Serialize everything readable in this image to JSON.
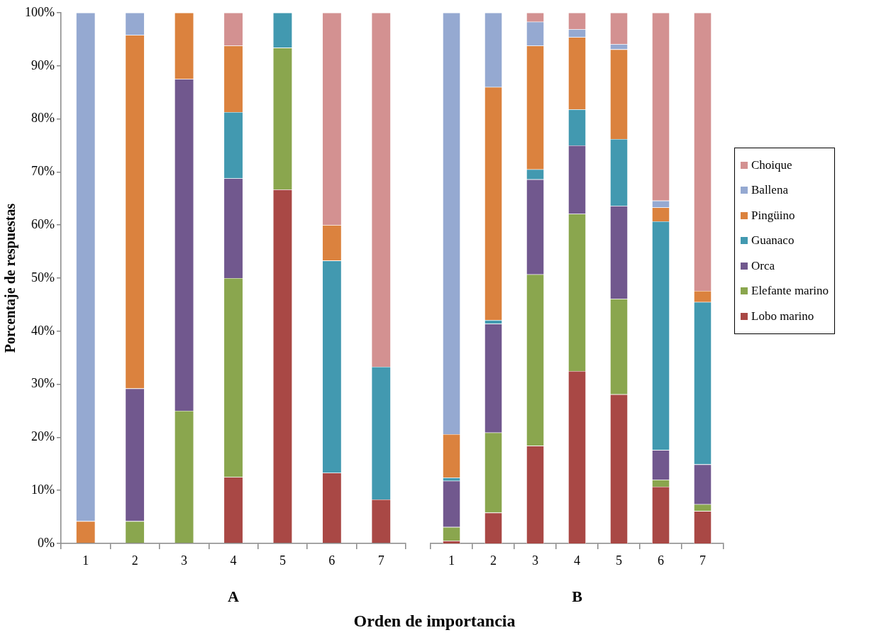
{
  "chart_data": [
    {
      "type": "bar",
      "stacked": true,
      "xlabel": "A",
      "ylabel": "Porcentaje de respuestas",
      "categories": [
        "1",
        "2",
        "3",
        "4",
        "5",
        "6",
        "7"
      ],
      "ylim": [
        0,
        100
      ],
      "yticks": [
        {
          "value": 0,
          "label": "0%"
        },
        {
          "value": 10,
          "label": "10%"
        },
        {
          "value": 20,
          "label": "20%"
        },
        {
          "value": 30,
          "label": "30%"
        },
        {
          "value": 40,
          "label": "40%"
        },
        {
          "value": 50,
          "label": "50%"
        },
        {
          "value": 60,
          "label": "60%"
        },
        {
          "value": 70,
          "label": "70%"
        },
        {
          "value": 80,
          "label": "80%"
        },
        {
          "value": 90,
          "label": "90%"
        },
        {
          "value": 100,
          "label": "100%"
        }
      ],
      "grid": false,
      "legend": "right",
      "series": [
        {
          "name": "Lobo marino",
          "color": "#a94845",
          "values": [
            0,
            0,
            0,
            12.5,
            66.7,
            13.3,
            8.3
          ]
        },
        {
          "name": "Elefante marino",
          "color": "#8aa64e",
          "values": [
            0,
            4.2,
            25,
            37.5,
            26.7,
            0,
            0
          ]
        },
        {
          "name": "Orca",
          "color": "#71588e",
          "values": [
            0,
            25,
            62.5,
            18.8,
            0,
            0,
            0
          ]
        },
        {
          "name": "Guanaco",
          "color": "#4299b0",
          "values": [
            0,
            0,
            0,
            12.5,
            6.6,
            40,
            25
          ]
        },
        {
          "name": "Pingüino",
          "color": "#db823e",
          "values": [
            4.2,
            66.6,
            12.5,
            12.5,
            0,
            6.7,
            0
          ]
        },
        {
          "name": "Ballena",
          "color": "#95a9d1",
          "values": [
            95.8,
            4.2,
            0,
            0,
            0,
            0,
            0
          ]
        },
        {
          "name": "Choique",
          "color": "#d39191",
          "values": [
            0,
            0,
            0,
            6.2,
            0,
            40,
            66.7
          ]
        }
      ]
    },
    {
      "type": "bar",
      "stacked": true,
      "xlabel": "B",
      "categories": [
        "1",
        "2",
        "3",
        "4",
        "5",
        "6",
        "7"
      ],
      "ylim": [
        0,
        100
      ],
      "tick_labels": "x",
      "grid": false,
      "legend": "right",
      "annotations": [
        "Orden de importancia"
      ],
      "series": [
        {
          "name": "Lobo marino",
          "color": "#a94845",
          "values": [
            0.5,
            5.8,
            18.4,
            32.5,
            28.1,
            10.7,
            6.1
          ]
        },
        {
          "name": "Elefante marino",
          "color": "#8aa64e",
          "values": [
            2.6,
            15.1,
            32.3,
            29.6,
            18.0,
            1.3,
            1.3
          ]
        },
        {
          "name": "Orca",
          "color": "#71588e",
          "values": [
            8.7,
            20.5,
            17.9,
            12.9,
            17.5,
            5.6,
            7.5
          ]
        },
        {
          "name": "Guanaco",
          "color": "#4299b0",
          "values": [
            0.6,
            0.7,
            1.9,
            6.8,
            12.6,
            43.1,
            30.6
          ]
        },
        {
          "name": "Pingüino",
          "color": "#db823e",
          "values": [
            8.2,
            43.9,
            23.3,
            13.6,
            16.9,
            2.6,
            2.1
          ]
        },
        {
          "name": "Ballena",
          "color": "#95a9d1",
          "values": [
            79.4,
            14.0,
            4.5,
            1.5,
            1.0,
            1.3,
            0
          ]
        },
        {
          "name": "Choique",
          "color": "#d39191",
          "values": [
            0,
            0,
            1.7,
            3.1,
            5.9,
            35.4,
            52.4
          ]
        }
      ]
    }
  ]
}
